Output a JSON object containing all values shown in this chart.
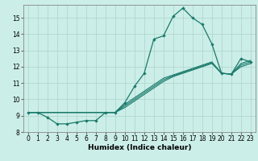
{
  "xlabel": "Humidex (Indice chaleur)",
  "bg_color": "#cceee8",
  "grid_color": "#b0d8d0",
  "line_color": "#1a7a6a",
  "xlim": [
    -0.5,
    23.5
  ],
  "ylim": [
    8,
    15.8
  ],
  "yticks": [
    8,
    9,
    10,
    11,
    12,
    13,
    14,
    15
  ],
  "xticks": [
    0,
    1,
    2,
    3,
    4,
    5,
    6,
    7,
    8,
    9,
    10,
    11,
    12,
    13,
    14,
    15,
    16,
    17,
    18,
    19,
    20,
    21,
    22,
    23
  ],
  "main_x": [
    0,
    1,
    2,
    3,
    4,
    5,
    6,
    7,
    8,
    9,
    10,
    11,
    12,
    13,
    14,
    15,
    16,
    17,
    18,
    19,
    20,
    21,
    22,
    23
  ],
  "main_y": [
    9.2,
    9.2,
    8.9,
    8.5,
    8.5,
    8.6,
    8.7,
    8.7,
    9.2,
    9.2,
    9.8,
    10.8,
    11.6,
    13.7,
    13.9,
    15.1,
    15.6,
    15.0,
    14.6,
    13.4,
    11.6,
    11.55,
    12.5,
    12.3
  ],
  "line2_x": [
    0,
    9,
    10,
    11,
    12,
    13,
    14,
    15,
    16,
    17,
    18,
    19,
    20,
    21,
    22,
    23
  ],
  "line2_y": [
    9.2,
    9.2,
    9.5,
    9.9,
    10.3,
    10.7,
    11.1,
    11.4,
    11.6,
    11.8,
    12.0,
    12.2,
    11.6,
    11.55,
    12.0,
    12.2
  ],
  "line3_x": [
    0,
    9,
    10,
    11,
    12,
    13,
    14,
    15,
    16,
    17,
    18,
    19,
    20,
    21,
    22,
    23
  ],
  "line3_y": [
    9.2,
    9.2,
    9.6,
    10.0,
    10.4,
    10.8,
    11.2,
    11.45,
    11.65,
    11.85,
    12.05,
    12.25,
    11.6,
    11.55,
    12.1,
    12.3
  ],
  "line4_x": [
    0,
    9,
    10,
    11,
    12,
    13,
    14,
    15,
    16,
    17,
    18,
    19,
    20,
    21,
    22,
    23
  ],
  "line4_y": [
    9.2,
    9.2,
    9.7,
    10.1,
    10.5,
    10.9,
    11.3,
    11.5,
    11.7,
    11.9,
    12.1,
    12.3,
    11.6,
    11.55,
    12.2,
    12.4
  ]
}
